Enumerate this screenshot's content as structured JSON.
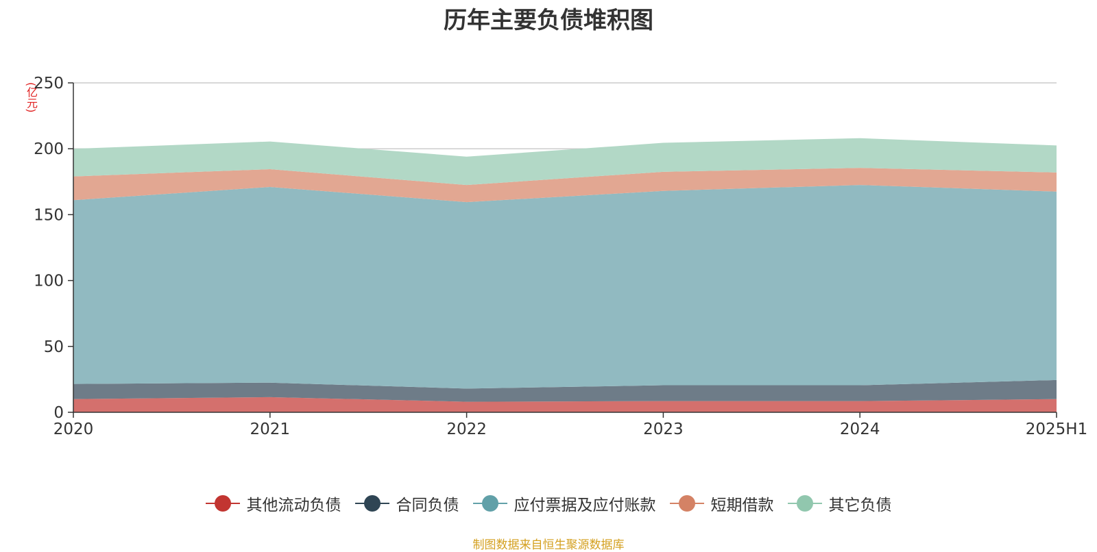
{
  "title": "历年主要负债堆积图",
  "source_note": "制图数据来自恒生聚源数据库",
  "chart_data": {
    "type": "area",
    "stacked": true,
    "title": "历年主要负债堆积图",
    "unit_label": "(亿元)",
    "categories": [
      "2020",
      "2021",
      "2022",
      "2023",
      "2024",
      "2025H1"
    ],
    "ylim": [
      0,
      250
    ],
    "yticks": [
      0,
      50,
      100,
      150,
      200,
      250
    ],
    "grid": true,
    "legend_position": "bottom",
    "series": [
      {
        "name": "其他流动负债",
        "color": "#c23531",
        "fill": "#d4706d",
        "values": [
          10,
          11.5,
          8,
          8.5,
          8.5,
          10
        ]
      },
      {
        "name": "合同负债",
        "color": "#2f4554",
        "fill": "#6e7c88",
        "values": [
          11.5,
          11,
          10,
          12,
          12,
          14.5
        ]
      },
      {
        "name": "应付票据及应付账款",
        "color": "#61a0a8",
        "fill": "#91bac1",
        "values": [
          139.5,
          148.5,
          141.5,
          147.5,
          152,
          143
        ]
      },
      {
        "name": "短期借款",
        "color": "#d48265",
        "fill": "#e2a792",
        "values": [
          18,
          13.5,
          13,
          14.5,
          13,
          14.5
        ]
      },
      {
        "name": "其它负债",
        "color": "#91c7ae",
        "fill": "#b2d8c6",
        "values": [
          21,
          21,
          21.5,
          22,
          22.5,
          20.5
        ]
      }
    ]
  }
}
